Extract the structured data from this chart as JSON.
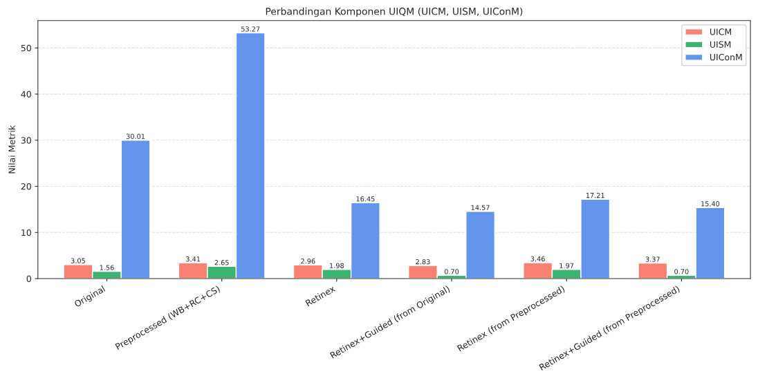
{
  "chart_data": {
    "type": "bar",
    "title": "Perbandingan Komponen UIQM (UICM, UISM, UIConM)",
    "ylabel": "Nilai Metrik",
    "categories": [
      "Original",
      "Preprocessed (WB+RC+CS)",
      "Retinex",
      "Retinex+Guided (from Original)",
      "Retinex (from Preprocessed)",
      "Retinex+Guided (from Preprocessed)"
    ],
    "series": [
      {
        "name": "UICM",
        "color": "#fa8072",
        "values": [
          3.05,
          3.41,
          2.96,
          2.83,
          3.46,
          3.37
        ],
        "value_labels": [
          "3.05",
          "3.41",
          "2.96",
          "2.83",
          "3.46",
          "3.37"
        ]
      },
      {
        "name": "UISM",
        "color": "#3cb371",
        "values": [
          1.56,
          2.65,
          1.98,
          0.7,
          1.97,
          0.7
        ],
        "value_labels": [
          "1.56",
          "2.65",
          "1.98",
          "0.70",
          "1.97",
          "0.70"
        ]
      },
      {
        "name": "UIConM",
        "color": "#6495ed",
        "values": [
          30.01,
          53.27,
          16.45,
          14.57,
          17.21,
          15.4
        ],
        "value_labels": [
          "30.01",
          "53.27",
          "16.45",
          "14.57",
          "17.21",
          "15.40"
        ]
      }
    ],
    "ylim": [
      0,
      55.93
    ],
    "yticks": [
      0,
      10,
      20,
      30,
      40,
      50
    ],
    "grid": "y",
    "legend": "top right"
  }
}
